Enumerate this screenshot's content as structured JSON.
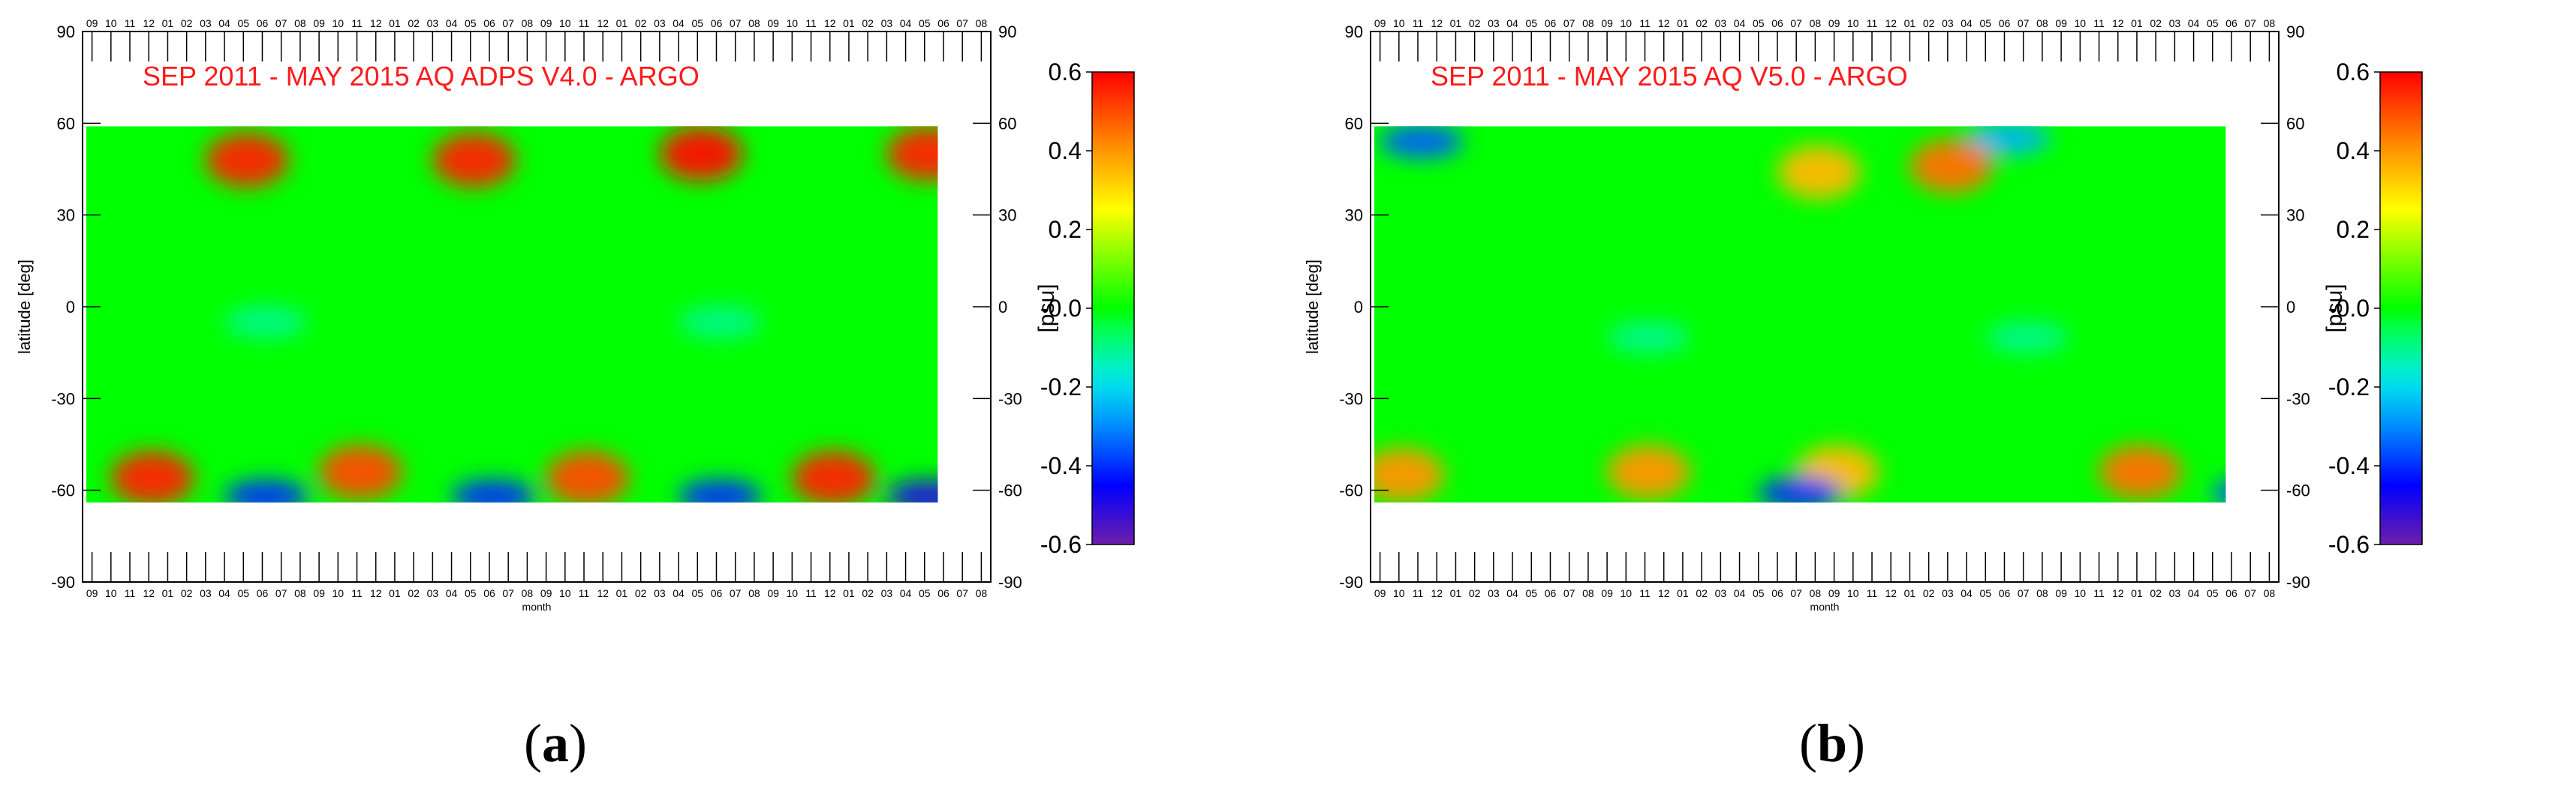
{
  "colors": {
    "title": "#ff1a1a",
    "axis": "#000000",
    "nodata": "#ffffff"
  },
  "axis": {
    "month_ticks": [
      "09",
      "10",
      "11",
      "12",
      "01",
      "02",
      "03",
      "04",
      "05",
      "06",
      "07",
      "08",
      "09",
      "10",
      "11",
      "12",
      "01",
      "02",
      "03",
      "04",
      "05",
      "06",
      "07",
      "08",
      "09",
      "10",
      "11",
      "12",
      "01",
      "02",
      "03",
      "04",
      "05",
      "06",
      "07",
      "08",
      "09",
      "10",
      "11",
      "12",
      "01",
      "02",
      "03",
      "04",
      "05",
      "06",
      "07",
      "08"
    ],
    "xlabel": "month",
    "ylabel": "latitude [deg]",
    "lat_ticks": [
      "90",
      "60",
      "30",
      "0",
      "-30",
      "-60",
      "-90"
    ],
    "right_lat_ticks": [
      "90",
      "60",
      "30",
      "0",
      "-30",
      "-60",
      "-90"
    ]
  },
  "colorbar": {
    "label": "[psu]",
    "ticks": [
      "0.6",
      "0.4",
      "0.2",
      "-0.0",
      "-0.2",
      "-0.4",
      "-0.6"
    ]
  },
  "chart_data": [
    {
      "type": "heatmap",
      "title": "SEP 2011 - MAY 2015   AQ ADPS V4.0 - ARGO",
      "caption": "a",
      "x_range_months": [
        "2011-09",
        "2015-05"
      ],
      "ylim": [
        -90,
        90
      ],
      "data_lat_range": [
        -64,
        59
      ],
      "zlim": [
        -0.6,
        0.6
      ],
      "zlabel": "[psu]",
      "anomalies": [
        {
          "month_index": 8,
          "lat": 48,
          "value": 0.55
        },
        {
          "month_index": 20,
          "lat": 48,
          "value": 0.55
        },
        {
          "month_index": 32,
          "lat": 50,
          "value": 0.58
        },
        {
          "month_index": 44,
          "lat": 50,
          "value": 0.55
        },
        {
          "month_index": 3,
          "lat": -56,
          "value": 0.55
        },
        {
          "month_index": 14,
          "lat": -54,
          "value": 0.5
        },
        {
          "month_index": 26,
          "lat": -56,
          "value": 0.5
        },
        {
          "month_index": 39,
          "lat": -56,
          "value": 0.55
        },
        {
          "month_index": 9,
          "lat": -62,
          "value": -0.4
        },
        {
          "month_index": 21,
          "lat": -62,
          "value": -0.4
        },
        {
          "month_index": 33,
          "lat": -62,
          "value": -0.4
        },
        {
          "month_index": 44,
          "lat": -62,
          "value": -0.5
        },
        {
          "month_index": 9,
          "lat": -5,
          "value": -0.1
        },
        {
          "month_index": 33,
          "lat": -5,
          "value": -0.1
        }
      ]
    },
    {
      "type": "heatmap",
      "title": "SEP 2011 - MAY 2015   AQ V5.0 - ARGO",
      "caption": "b",
      "x_range_months": [
        "2011-09",
        "2015-05"
      ],
      "ylim": [
        -90,
        90
      ],
      "data_lat_range": [
        -64,
        59
      ],
      "zlim": [
        -0.6,
        0.6
      ],
      "zlabel": "[psu]",
      "anomalies": [
        {
          "month_index": 2,
          "lat": 54,
          "value": -0.35
        },
        {
          "month_index": 33,
          "lat": 55,
          "value": -0.25
        },
        {
          "month_index": 30,
          "lat": 46,
          "value": 0.45
        },
        {
          "month_index": 23,
          "lat": 44,
          "value": 0.35
        },
        {
          "month_index": 1,
          "lat": -55,
          "value": 0.4
        },
        {
          "month_index": 14,
          "lat": -54,
          "value": 0.4
        },
        {
          "month_index": 24,
          "lat": -54,
          "value": 0.35
        },
        {
          "month_index": 40,
          "lat": -54,
          "value": 0.45
        },
        {
          "month_index": 22,
          "lat": -61,
          "value": -0.4
        },
        {
          "month_index": 46,
          "lat": -61,
          "value": -0.35
        },
        {
          "month_index": 14,
          "lat": -10,
          "value": -0.1
        },
        {
          "month_index": 34,
          "lat": -10,
          "value": -0.1
        }
      ]
    }
  ]
}
